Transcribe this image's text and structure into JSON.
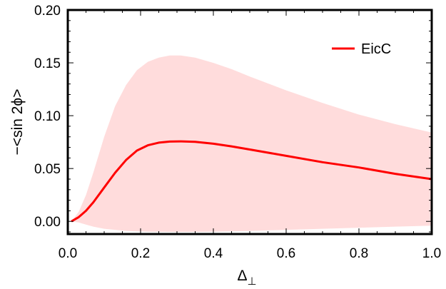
{
  "chart_data": {
    "type": "line",
    "xlabel": "Δ",
    "xlabel_subscript": "⊥",
    "ylabel": "−<sin 2ϕ>",
    "xlim": [
      0.0,
      1.0
    ],
    "ylim": [
      -0.012,
      0.2
    ],
    "x_ticks": [
      "0.0",
      "0.2",
      "0.4",
      "0.6",
      "0.8",
      "1.0"
    ],
    "y_ticks": [
      "0.00",
      "0.05",
      "0.10",
      "0.15",
      "0.20"
    ],
    "legend_position": "top-right",
    "colors": {
      "line": "#ff0000",
      "band": "#ffdcdc",
      "frame": "#000000"
    },
    "series": [
      {
        "name": "EicC",
        "x": [
          0.01,
          0.03,
          0.05,
          0.07,
          0.1,
          0.13,
          0.16,
          0.19,
          0.22,
          0.25,
          0.28,
          0.31,
          0.35,
          0.4,
          0.45,
          0.5,
          0.6,
          0.7,
          0.8,
          0.9,
          1.0
        ],
        "y": [
          0.0,
          0.004,
          0.01,
          0.018,
          0.032,
          0.046,
          0.058,
          0.067,
          0.072,
          0.0745,
          0.0755,
          0.0757,
          0.0752,
          0.0735,
          0.071,
          0.068,
          0.062,
          0.056,
          0.051,
          0.045,
          0.04
        ],
        "upper": [
          0.0,
          0.009,
          0.025,
          0.046,
          0.08,
          0.109,
          0.129,
          0.143,
          0.151,
          0.155,
          0.157,
          0.157,
          0.155,
          0.15,
          0.144,
          0.137,
          0.124,
          0.112,
          0.101,
          0.092,
          0.084
        ],
        "lower": [
          0.0,
          -0.001,
          -0.003,
          -0.005,
          -0.007,
          -0.008,
          -0.009,
          -0.0095,
          -0.0098,
          -0.0099,
          -0.01,
          -0.01,
          -0.01,
          -0.0098,
          -0.0095,
          -0.009,
          -0.008,
          -0.007,
          -0.006,
          -0.005,
          -0.004
        ]
      }
    ]
  }
}
